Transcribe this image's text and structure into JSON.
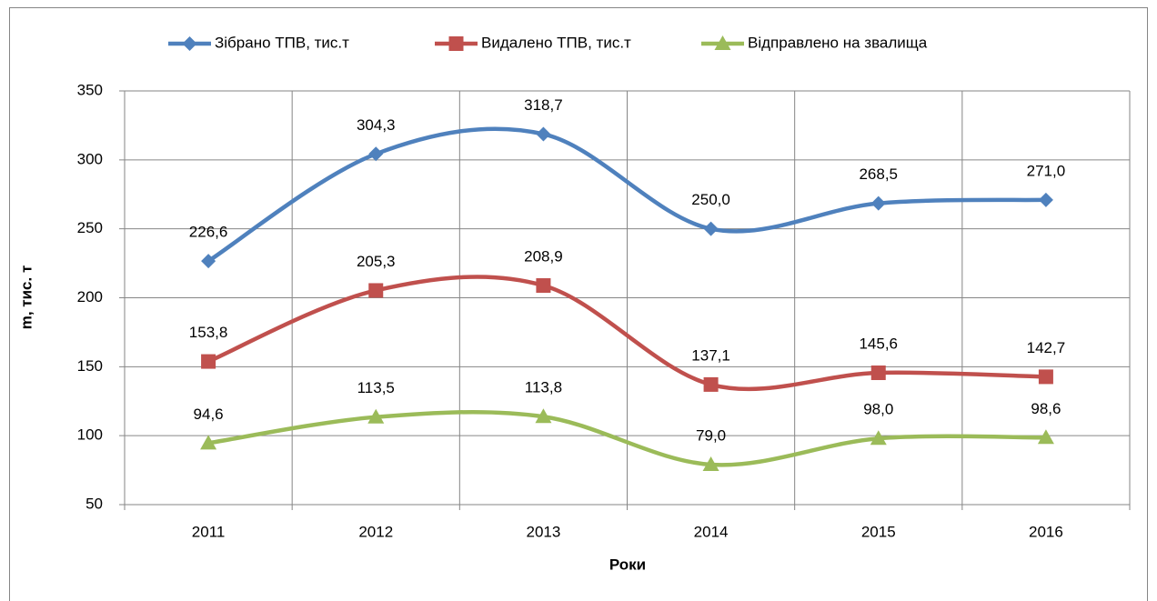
{
  "chart_data": {
    "type": "line",
    "categories": [
      "2011",
      "2012",
      "2013",
      "2014",
      "2015",
      "2016"
    ],
    "series": [
      {
        "name": "Зібрано ТПВ, тис.т",
        "color": "#4f81bd",
        "marker": "diamond",
        "values": [
          226.6,
          304.3,
          318.7,
          250.0,
          268.5,
          271.0
        ],
        "value_labels": [
          "226,6",
          "304,3",
          "318,7",
          "250,0",
          "268,5",
          "271,0"
        ]
      },
      {
        "name": "Видалено ТПВ, тис.т",
        "color": "#c0504d",
        "marker": "square",
        "values": [
          153.8,
          205.3,
          208.9,
          137.1,
          145.6,
          142.7
        ],
        "value_labels": [
          "153,8",
          "205,3",
          "208,9",
          "137,1",
          "145,6",
          "142,7"
        ]
      },
      {
        "name": "Відправлено на звалища",
        "color": "#9bbb59",
        "marker": "triangle",
        "values": [
          94.6,
          113.5,
          113.8,
          79.0,
          98.0,
          98.6
        ],
        "value_labels": [
          "94,6",
          "113,5",
          "113,8",
          "79,0",
          "98,0",
          "98,6"
        ]
      }
    ],
    "ylim": [
      50,
      350
    ],
    "yticks": [
      50,
      100,
      150,
      200,
      250,
      300,
      350
    ],
    "y_label": "m, тис. т",
    "x_label": "Роки",
    "grid": true,
    "smooth": true,
    "legend": "top"
  }
}
